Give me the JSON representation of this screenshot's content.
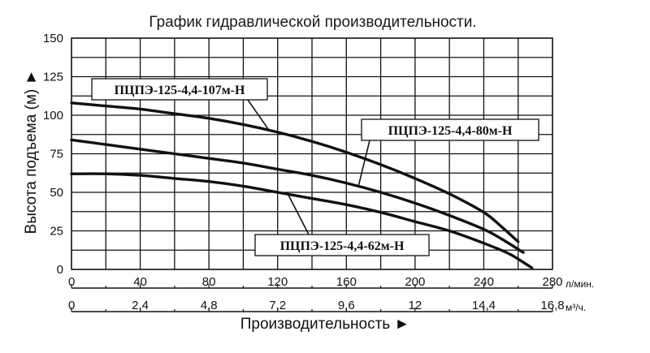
{
  "chart_data": {
    "type": "line",
    "title": "График гидравлической производительности.",
    "ylabel": "Высота подъема (м) ►",
    "xlabel": "Производительность ►",
    "ylim": [
      0,
      150
    ],
    "yticks": [
      "0",
      "25",
      "50",
      "75",
      "100",
      "125",
      "150"
    ],
    "xlim": [
      0,
      280
    ],
    "x_axis_primary": {
      "unit": "л/мин.",
      "ticks": [
        "0",
        "40",
        "80",
        "120",
        "160",
        "200",
        "240",
        "280"
      ]
    },
    "x_axis_secondary": {
      "unit": "м³/ч.",
      "ticks": [
        "0",
        "2,4",
        "4,8",
        "7,2",
        "9,6",
        "12",
        "14,4",
        "16,8"
      ]
    },
    "grid": true,
    "series": [
      {
        "name": "ПЦПЭ-125-4,4-107м-Н",
        "x": [
          0,
          20,
          40,
          60,
          80,
          100,
          120,
          140,
          160,
          180,
          200,
          220,
          240,
          250,
          260
        ],
        "y": [
          108,
          106,
          104,
          101,
          98,
          94,
          89,
          83,
          76,
          68,
          59,
          49,
          37,
          28,
          18
        ]
      },
      {
        "name": "ПЦПЭ-125-4,4-80м-Н",
        "x": [
          0,
          20,
          40,
          60,
          80,
          100,
          120,
          140,
          160,
          180,
          200,
          220,
          240,
          250,
          263
        ],
        "y": [
          84,
          81,
          78,
          75,
          72,
          69,
          65,
          61,
          56,
          50,
          43,
          35,
          26,
          20,
          11
        ]
      },
      {
        "name": "ПЦПЭ-125-4,4-62м-Н",
        "x": [
          0,
          20,
          40,
          60,
          80,
          100,
          120,
          140,
          160,
          180,
          200,
          220,
          240,
          255,
          268
        ],
        "y": [
          62,
          62,
          61,
          59,
          57,
          54,
          50,
          46,
          42,
          37,
          31,
          25,
          17,
          10,
          1
        ]
      }
    ]
  }
}
